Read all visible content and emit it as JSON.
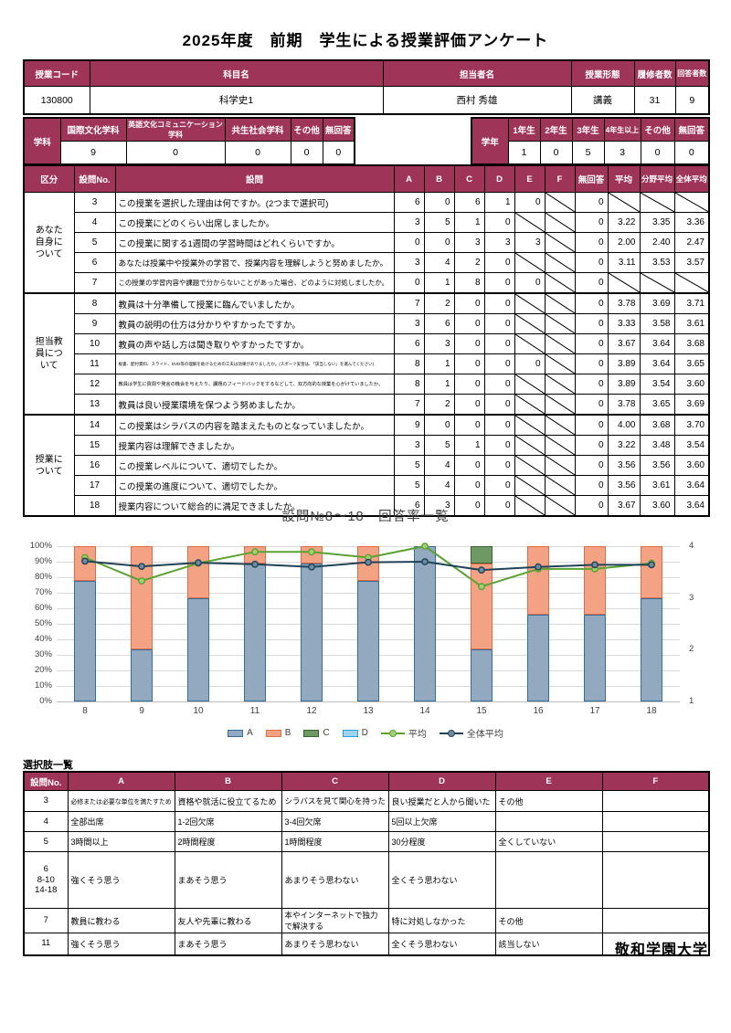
{
  "title": "2025年度　前期　学生による授業評価アンケート",
  "course_table": {
    "headers": [
      "授業コード",
      "科目名",
      "担当者名",
      "授業形態",
      "履修者数",
      "回答者数"
    ],
    "values": [
      "130800",
      "科学史1",
      "西村 秀雄",
      "講義",
      "31",
      "9"
    ]
  },
  "department_table": {
    "label": "学科",
    "headers": [
      "国際文化学科",
      "英語文化コミュニケーション学科",
      "共生社会学科",
      "その他",
      "無回答"
    ],
    "values": [
      "9",
      "0",
      "0",
      "0",
      "0"
    ]
  },
  "grade_table": {
    "label": "学年",
    "headers": [
      "1年生",
      "2年生",
      "3年生",
      "4年生以上",
      "その他",
      "無回答"
    ],
    "values": [
      "1",
      "0",
      "5",
      "3",
      "0",
      "0"
    ]
  },
  "question_table": {
    "headers": [
      "区分",
      "設問No.",
      "設問",
      "A",
      "B",
      "C",
      "D",
      "E",
      "F",
      "無回答",
      "平均",
      "分野平均",
      "全体平均"
    ],
    "groups": [
      {
        "label": "あなた自身について",
        "rows": [
          {
            "no": "3",
            "text": "この授業を選択した理由は何ですか。(2つまで選択可)",
            "cells": [
              "6",
              "0",
              "6",
              "1",
              "0",
              "/",
              "0",
              "/",
              "/",
              "/"
            ]
          },
          {
            "no": "4",
            "text": "この授業にどのくらい出席しましたか。",
            "cells": [
              "3",
              "5",
              "1",
              "0",
              "/",
              "/",
              "0",
              "3.22",
              "3.35",
              "3.36"
            ]
          },
          {
            "no": "5",
            "text": "この授業に関する1週間の学習時間はどれくらいですか。",
            "cells": [
              "0",
              "0",
              "3",
              "3",
              "3",
              "/",
              "0",
              "2.00",
              "2.40",
              "2.47"
            ]
          },
          {
            "no": "6",
            "text": "あなたは授業中や授業外の学習で、授業内容を理解しようと努めましたか。",
            "cells": [
              "3",
              "4",
              "2",
              "0",
              "/",
              "/",
              "0",
              "3.11",
              "3.53",
              "3.57"
            ]
          },
          {
            "no": "7",
            "text": "この授業の学習内容や課題で分からないことがあった場合、どのように対処しましたか。",
            "cells": [
              "0",
              "1",
              "8",
              "0",
              "0",
              "/",
              "0",
              "/",
              "/",
              "/"
            ]
          }
        ]
      },
      {
        "label": "担当教員について",
        "rows": [
          {
            "no": "8",
            "text": "教員は十分準備して授業に臨んでいましたか。",
            "cells": [
              "7",
              "2",
              "0",
              "0",
              "/",
              "/",
              "0",
              "3.78",
              "3.69",
              "3.71"
            ]
          },
          {
            "no": "9",
            "text": "教員の説明の仕方は分かりやすかったですか。",
            "cells": [
              "3",
              "6",
              "0",
              "0",
              "/",
              "/",
              "0",
              "3.33",
              "3.58",
              "3.61"
            ]
          },
          {
            "no": "10",
            "text": "教員の声や話し方は聞き取りやすかったですか。",
            "cells": [
              "6",
              "3",
              "0",
              "0",
              "/",
              "/",
              "0",
              "3.67",
              "3.64",
              "3.68"
            ]
          },
          {
            "no": "11",
            "text": "板書、配付資料、スライド、DVD等の理解を助けるための工夫は効果がありましたか。(スポーツ実習は、「該当しない」を選んでください)",
            "cells": [
              "8",
              "1",
              "0",
              "0",
              "0",
              "/",
              "0",
              "3.89",
              "3.64",
              "3.65"
            ]
          },
          {
            "no": "12",
            "text": "教員は学生に質問や発言の機会を与えたり、課題のフィードバックをするなどして、双方向的な授業を心がけていましたか。",
            "cells": [
              "8",
              "1",
              "0",
              "0",
              "/",
              "/",
              "0",
              "3.89",
              "3.54",
              "3.60"
            ]
          },
          {
            "no": "13",
            "text": "教員は良い授業環境を保つよう努めましたか。",
            "cells": [
              "7",
              "2",
              "0",
              "0",
              "/",
              "/",
              "0",
              "3.78",
              "3.65",
              "3.69"
            ]
          }
        ]
      },
      {
        "label": "授業について",
        "rows": [
          {
            "no": "14",
            "text": "この授業はシラバスの内容を踏まえたものとなっていましたか。",
            "cells": [
              "9",
              "0",
              "0",
              "0",
              "/",
              "/",
              "0",
              "4.00",
              "3.68",
              "3.70"
            ]
          },
          {
            "no": "15",
            "text": "授業内容は理解できましたか。",
            "cells": [
              "3",
              "5",
              "1",
              "0",
              "/",
              "/",
              "0",
              "3.22",
              "3.48",
              "3.54"
            ]
          },
          {
            "no": "16",
            "text": "この授業レベルについて、適切でしたか。",
            "cells": [
              "5",
              "4",
              "0",
              "0",
              "/",
              "/",
              "0",
              "3.56",
              "3.56",
              "3.60"
            ]
          },
          {
            "no": "17",
            "text": "この授業の進度について、適切でしたか。",
            "cells": [
              "5",
              "4",
              "0",
              "0",
              "/",
              "/",
              "0",
              "3.56",
              "3.61",
              "3.64"
            ]
          },
          {
            "no": "18",
            "text": "授業内容について総合的に満足できましたか。",
            "cells": [
              "6",
              "3",
              "0",
              "0",
              "/",
              "/",
              "0",
              "3.67",
              "3.60",
              "3.64"
            ]
          }
        ]
      }
    ]
  },
  "chart_data": {
    "type": "bar",
    "subtype": "stacked-percent-with-lines",
    "title": "設問№8～18　回答率一覧",
    "categories": [
      "8",
      "9",
      "10",
      "11",
      "12",
      "13",
      "14",
      "15",
      "16",
      "17",
      "18"
    ],
    "series": [
      {
        "name": "A",
        "color": "#92a9bf",
        "border": "#31709e",
        "values": [
          77.8,
          33.3,
          66.7,
          88.9,
          88.9,
          77.8,
          100,
          33.3,
          55.6,
          55.6,
          66.7
        ]
      },
      {
        "name": "B",
        "color": "#f4a284",
        "border": "#e06b45",
        "values": [
          22.2,
          66.7,
          33.3,
          11.1,
          11.1,
          22.2,
          0,
          55.6,
          44.4,
          44.4,
          33.3
        ]
      },
      {
        "name": "C",
        "color": "#6f9964",
        "border": "#39632f",
        "values": [
          0,
          0,
          0,
          0,
          0,
          0,
          0,
          11.1,
          0,
          0,
          0
        ]
      },
      {
        "name": "D",
        "color": "#9fd5f2",
        "border": "#2e9bd6",
        "values": [
          0,
          0,
          0,
          0,
          0,
          0,
          0,
          0,
          0,
          0,
          0
        ]
      }
    ],
    "lines": [
      {
        "name": "平均",
        "color": "#5aa232",
        "marker_fill": "#a5d075",
        "values": [
          3.78,
          3.33,
          3.67,
          3.89,
          3.89,
          3.78,
          4.0,
          3.22,
          3.56,
          3.56,
          3.67
        ]
      },
      {
        "name": "全体平均",
        "color": "#1f4257",
        "marker_fill": "#6d8b9e",
        "values": [
          3.71,
          3.61,
          3.68,
          3.65,
          3.6,
          3.69,
          3.7,
          3.54,
          3.6,
          3.64,
          3.64
        ]
      }
    ],
    "left_axis": {
      "ticks": [
        "0%",
        "10%",
        "20%",
        "30%",
        "40%",
        "50%",
        "60%",
        "70%",
        "80%",
        "90%",
        "100%"
      ],
      "min": 0,
      "max": 100
    },
    "right_axis": {
      "ticks": [
        "1",
        "2",
        "3",
        "4"
      ],
      "min": 1,
      "max": 4
    },
    "grid": true,
    "legend_position": "bottom"
  },
  "choices_table": {
    "label": "選択肢一覧",
    "headers": [
      "設問No.",
      "A",
      "B",
      "C",
      "D",
      "E",
      "F"
    ],
    "rows": [
      {
        "no": "3",
        "cells": [
          "必修または必要な単位を満たすため",
          "資格や就活に役立てるため",
          "シラバスを見て関心を持った",
          "良い授業だと人から聞いた",
          "その他",
          ""
        ]
      },
      {
        "no": "4",
        "cells": [
          "全部出席",
          "1-2回欠席",
          "3-4回欠席",
          "5回以上欠席",
          "",
          ""
        ]
      },
      {
        "no": "5",
        "cells": [
          "3時間以上",
          "2時間程度",
          "1時間程度",
          "30分程度",
          "全くしていない",
          ""
        ]
      },
      {
        "no": "6\n8-10\n14-18",
        "cells": [
          "強くそう思う",
          "まあそう思う",
          "あまりそう思わない",
          "全くそう思わない",
          "",
          ""
        ]
      },
      {
        "no": "7",
        "cells": [
          "教員に教わる",
          "友人や先輩に教わる",
          "本やインターネットで独力で解決する",
          "特に対処しなかった",
          "その他",
          ""
        ]
      },
      {
        "no": "11",
        "cells": [
          "強くそう思う",
          "まあそう思う",
          "あまりそう思わない",
          "全くそう思わない",
          "該当しない",
          ""
        ]
      }
    ]
  },
  "footer": {
    "university": "敬和学園大学"
  },
  "colors": {
    "header_bg": "#9e3457",
    "header_text": "#ffffff"
  }
}
